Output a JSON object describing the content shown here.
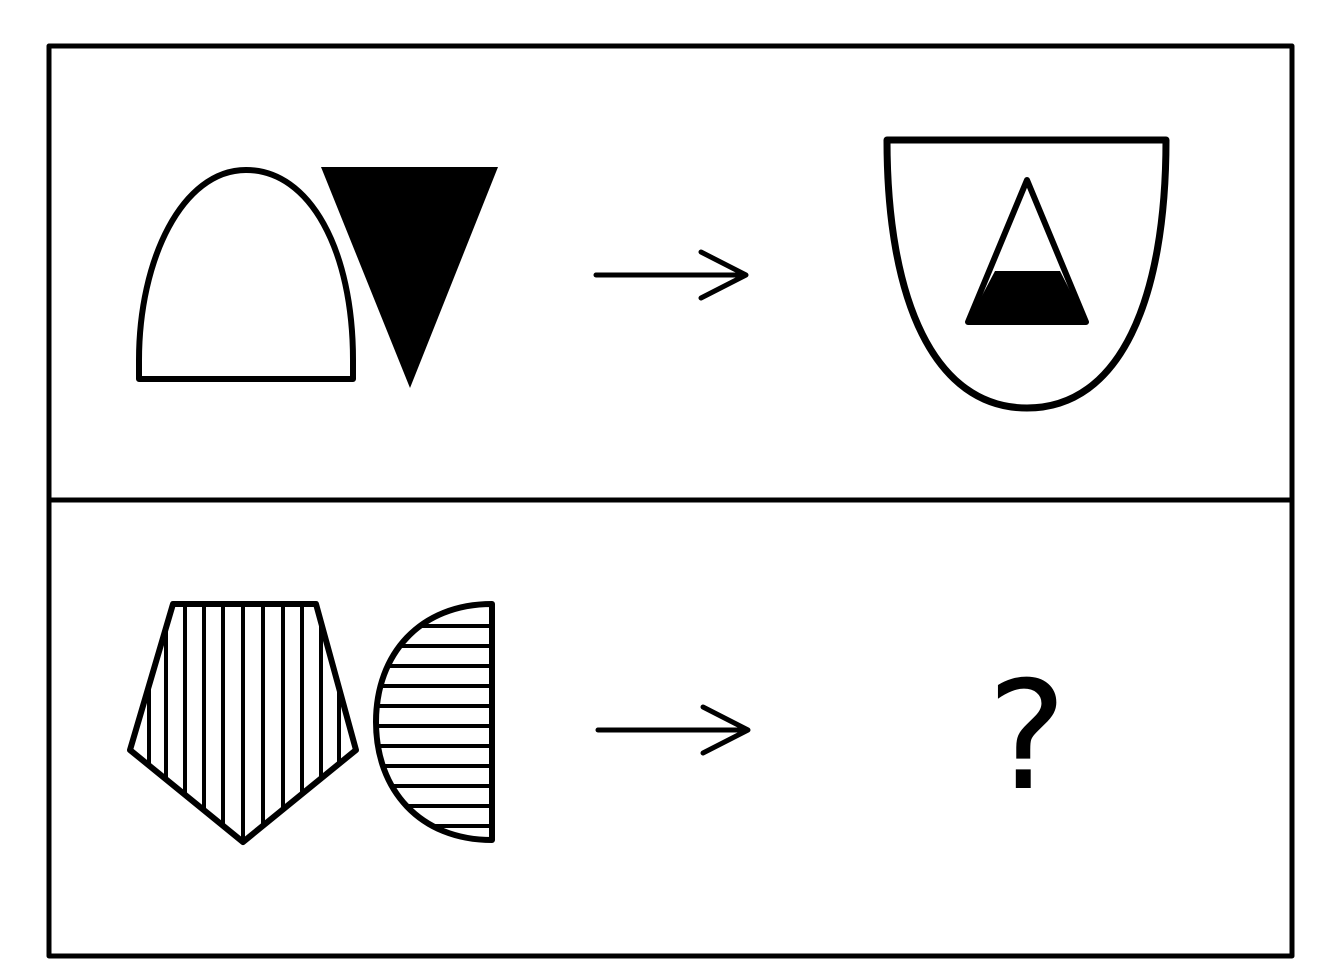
{
  "puzzle": {
    "row_1": {
      "input_shapes": [
        "outlined-dome",
        "solid-black-inverted-triangle"
      ],
      "output_shapes": [
        "outlined-shield",
        "half-filled-triangle"
      ]
    },
    "row_2": {
      "input_shapes": [
        "vertical-striped-pentagon",
        "horizontal-striped-half-disc"
      ],
      "answer": "?"
    },
    "colors": {
      "ink": "#000000",
      "paper": "#ffffff"
    }
  }
}
